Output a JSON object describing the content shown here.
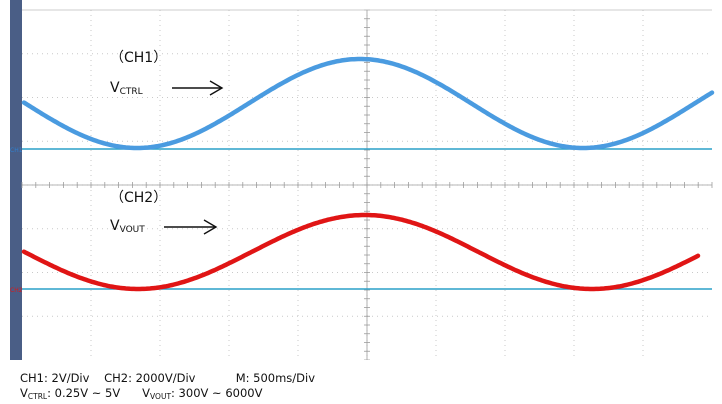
{
  "scope": {
    "colors": {
      "ch1": "#4a9be0",
      "ch2": "#e01515",
      "baseline": "#2aa0c8",
      "side_strip": "#4a5e86",
      "grid": "#c9c9c9"
    },
    "ch1": {
      "name": "（CH1）",
      "signal_main": "V",
      "signal_sub": "CTRL",
      "marker": "CH1"
    },
    "ch2": {
      "name": "（CH2）",
      "signal_main": "V",
      "signal_sub": "VOUT",
      "marker": "CH2"
    }
  },
  "footer": {
    "line1": {
      "ch1": "CH1: 2V/Div",
      "ch2": "CH2: 2000V/Div",
      "m": "M: 500ms/Div"
    },
    "line2": {
      "v1_main": "V",
      "v1_sub": "CTRL",
      "v1_range": ": 0.25V ~ 5V",
      "v2_main": "V",
      "v2_sub": "VOUT",
      "v2_range": ": 300V ~ 6000V"
    }
  }
}
